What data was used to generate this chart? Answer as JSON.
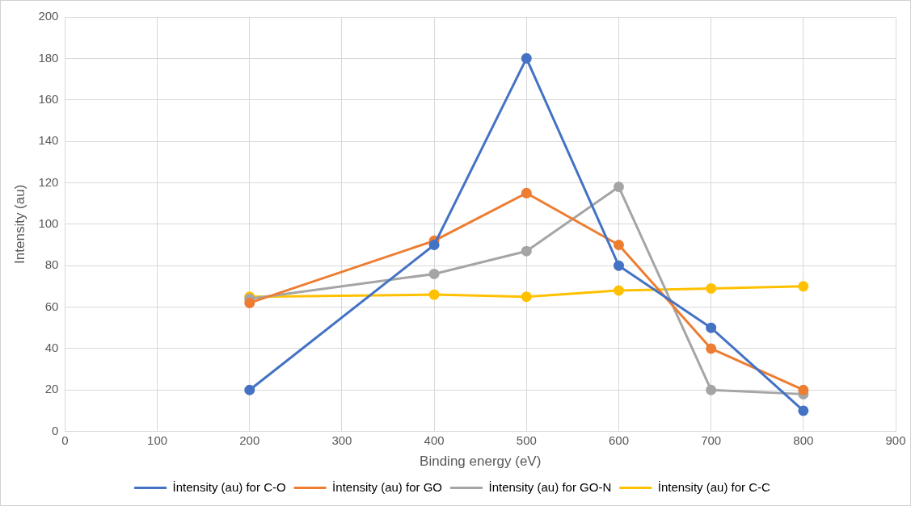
{
  "chart_data": {
    "type": "line",
    "xlabel": "Binding energy (eV)",
    "ylabel": "Intensity (au)",
    "x": [
      200,
      400,
      500,
      600,
      700,
      800
    ],
    "series": [
      {
        "name": "İntensity (au) for C-O",
        "color": "#4472c4",
        "values": [
          20,
          90,
          180,
          80,
          50,
          10
        ]
      },
      {
        "name": "İntensity (au) for GO",
        "color": "#ed7d31",
        "values": [
          62,
          92,
          115,
          90,
          40,
          20
        ]
      },
      {
        "name": "İntensity (au) for GO-N",
        "color": "#a5a5a5",
        "values": [
          64,
          76,
          87,
          118,
          20,
          18
        ]
      },
      {
        "name": "İntensity (au) for C-C",
        "color": "#ffc000",
        "values": [
          65,
          66,
          65,
          68,
          69,
          70
        ]
      }
    ],
    "xlim": [
      0,
      900
    ],
    "xticks": [
      0,
      100,
      200,
      300,
      400,
      500,
      600,
      700,
      800,
      900
    ],
    "ylim": [
      0,
      200
    ],
    "yticks": [
      0,
      20,
      40,
      60,
      80,
      100,
      120,
      140,
      160,
      180,
      200
    ],
    "grid": true,
    "legend": "bottom",
    "marker": "circle",
    "line_style": "solid"
  }
}
